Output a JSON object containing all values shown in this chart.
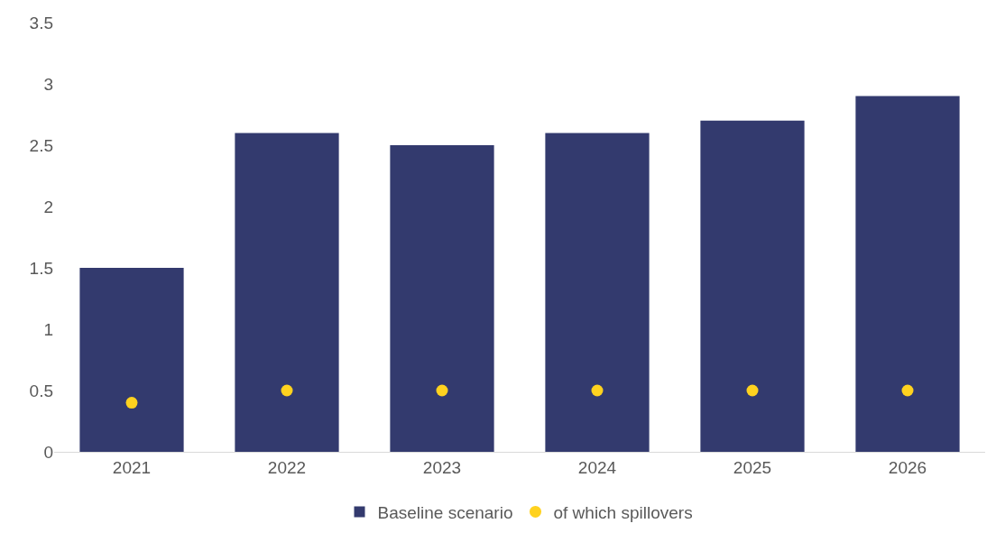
{
  "chart_data": {
    "type": "bar",
    "categories": [
      "2021",
      "2022",
      "2023",
      "2024",
      "2025",
      "2026"
    ],
    "series": [
      {
        "name": "Baseline scenario",
        "color": "#333a6e",
        "values": [
          1.5,
          2.6,
          2.5,
          2.6,
          2.7,
          2.9
        ]
      },
      {
        "name": "of which spillovers",
        "type": "scatter",
        "color": "#ffd21f",
        "values": [
          0.4,
          0.5,
          0.5,
          0.5,
          0.5,
          0.5
        ]
      }
    ],
    "ylim": [
      0,
      3.5
    ],
    "yticks": [
      0,
      0.5,
      1,
      1.5,
      2,
      2.5,
      3,
      3.5
    ],
    "grid": false,
    "legend": "bottom",
    "marker": "circle"
  }
}
